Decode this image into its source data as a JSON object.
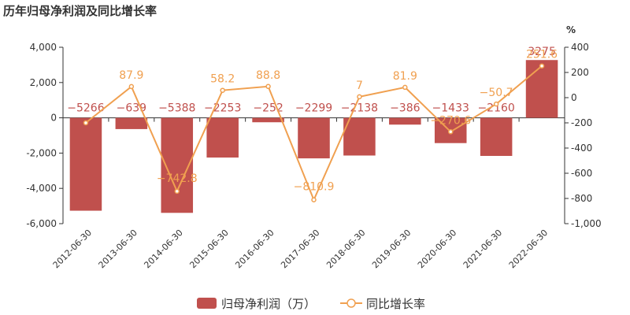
{
  "chart_data": {
    "type": "bar",
    "title": "历年归母净利润及同比增长率",
    "categories": [
      "2012-06-30",
      "2013-06-30",
      "2014-06-30",
      "2015-06-30",
      "2016-06-30",
      "2017-06-30",
      "2018-06-30",
      "2019-06-30",
      "2020-06-30",
      "2021-06-30",
      "2022-06-30"
    ],
    "series": [
      {
        "name": "归母净利润（万）",
        "type": "bar",
        "axis": "left",
        "color": "#c0504d",
        "values": [
          -5266,
          -639,
          -5388,
          -2253,
          -252,
          -2299,
          -2138,
          -386,
          -1433,
          -2160,
          3275
        ],
        "labels": [
          "-5266",
          "-639",
          "-5388",
          "-2253",
          "-252",
          "-2299",
          "-2138",
          "-386",
          "-1433",
          "-2160",
          "3275"
        ]
      },
      {
        "name": "同比增长率",
        "type": "line",
        "axis": "right",
        "color": "#f0a050",
        "values": [
          -200,
          87.9,
          -742.8,
          58.2,
          88.8,
          -810.9,
          7,
          81.9,
          -270.6,
          -50.7,
          251.6
        ],
        "labels": [
          "",
          "87.9",
          "-742.8",
          "58.2",
          "88.8",
          "-810.9",
          "7",
          "81.9",
          "-270.6",
          "-50.7",
          "251.6"
        ]
      }
    ],
    "left_axis": {
      "min": -6000,
      "max": 4000,
      "ticks": [
        -6000,
        -4000,
        -2000,
        0,
        2000,
        4000
      ],
      "tick_labels": [
        "-6,000",
        "-4,000",
        "-2,000",
        "0",
        "2,000",
        "4,000"
      ]
    },
    "right_axis": {
      "unit": "%",
      "min": -1000,
      "max": 400,
      "ticks": [
        -1000,
        -800,
        -600,
        -400,
        -200,
        0,
        200,
        400
      ],
      "tick_labels": [
        "-1,000",
        "-800",
        "-600",
        "-400",
        "-200",
        "0",
        "200",
        "400"
      ]
    },
    "legend_position": "bottom-center",
    "grid": false
  }
}
